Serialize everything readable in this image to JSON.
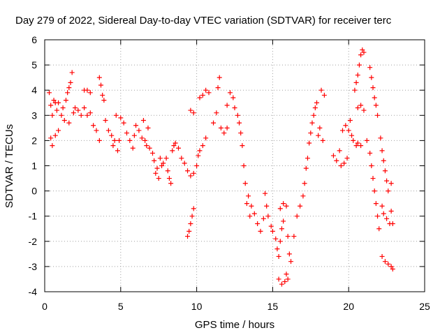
{
  "chart_data": {
    "type": "scatter",
    "title": "Day 279 of 2022, Sidereal Day-to-day VTEC variation (SDTVAR) for receiver terc",
    "xlabel": "GPS time / hours",
    "ylabel": "SDTVAR / TECUs",
    "xlim": [
      0,
      25
    ],
    "ylim": [
      -4,
      6
    ],
    "xticks": [
      0,
      5,
      10,
      15,
      20,
      25
    ],
    "yticks": [
      -4,
      -3,
      -2,
      -1,
      0,
      1,
      2,
      3,
      4,
      5,
      6
    ],
    "grid": true,
    "marker": "+",
    "marker_color": "#ff0000",
    "series": [
      {
        "name": "",
        "points": [
          [
            0.3,
            3.9
          ],
          [
            0.4,
            3.4
          ],
          [
            0.5,
            3.0
          ],
          [
            0.6,
            3.6
          ],
          [
            0.7,
            3.5
          ],
          [
            0.8,
            3.2
          ],
          [
            0.9,
            3.5
          ],
          [
            0.4,
            2.1
          ],
          [
            0.5,
            1.8
          ],
          [
            0.7,
            2.2
          ],
          [
            0.9,
            2.4
          ],
          [
            1.1,
            3.0
          ],
          [
            1.2,
            3.3
          ],
          [
            1.3,
            2.8
          ],
          [
            1.4,
            3.6
          ],
          [
            1.5,
            3.9
          ],
          [
            1.6,
            4.1
          ],
          [
            1.7,
            4.3
          ],
          [
            1.8,
            4.7
          ],
          [
            1.6,
            2.7
          ],
          [
            1.9,
            3.1
          ],
          [
            2.0,
            3.3
          ],
          [
            2.2,
            3.2
          ],
          [
            2.4,
            3.0
          ],
          [
            2.6,
            3.3
          ],
          [
            2.8,
            3.0
          ],
          [
            3.0,
            3.1
          ],
          [
            2.6,
            4.0
          ],
          [
            2.8,
            4.0
          ],
          [
            3.0,
            3.9
          ],
          [
            3.2,
            2.6
          ],
          [
            3.4,
            2.4
          ],
          [
            3.6,
            2.0
          ],
          [
            3.6,
            4.5
          ],
          [
            3.7,
            4.2
          ],
          [
            3.8,
            3.8
          ],
          [
            3.9,
            3.6
          ],
          [
            4.0,
            2.8
          ],
          [
            4.2,
            2.4
          ],
          [
            4.4,
            2.2
          ],
          [
            4.5,
            1.8
          ],
          [
            4.6,
            2.0
          ],
          [
            4.8,
            1.6
          ],
          [
            4.9,
            2.0
          ],
          [
            4.7,
            3.0
          ],
          [
            5.0,
            2.9
          ],
          [
            5.2,
            2.7
          ],
          [
            5.4,
            2.3
          ],
          [
            5.6,
            2.0
          ],
          [
            5.8,
            1.7
          ],
          [
            5.9,
            2.2
          ],
          [
            6.0,
            2.6
          ],
          [
            6.2,
            2.4
          ],
          [
            6.4,
            2.1
          ],
          [
            6.5,
            2.8
          ],
          [
            6.6,
            2.0
          ],
          [
            6.7,
            1.8
          ],
          [
            6.8,
            2.5
          ],
          [
            6.9,
            1.7
          ],
          [
            7.1,
            1.5
          ],
          [
            7.2,
            1.2
          ],
          [
            7.3,
            0.7
          ],
          [
            7.4,
            0.9
          ],
          [
            7.5,
            0.5
          ],
          [
            7.6,
            1.3
          ],
          [
            7.7,
            1.0
          ],
          [
            7.8,
            1.1
          ],
          [
            8.0,
            1.3
          ],
          [
            8.1,
            0.8
          ],
          [
            8.2,
            0.5
          ],
          [
            8.3,
            0.3
          ],
          [
            8.4,
            1.6
          ],
          [
            8.5,
            1.8
          ],
          [
            8.6,
            1.9
          ],
          [
            8.8,
            1.7
          ],
          [
            9.0,
            1.3
          ],
          [
            9.2,
            1.1
          ],
          [
            9.4,
            0.8
          ],
          [
            9.6,
            0.6
          ],
          [
            9.8,
            0.7
          ],
          [
            9.4,
            -1.8
          ],
          [
            9.5,
            -1.6
          ],
          [
            9.6,
            -1.3
          ],
          [
            9.7,
            -1.0
          ],
          [
            9.8,
            -0.7
          ],
          [
            9.6,
            3.2
          ],
          [
            9.8,
            3.1
          ],
          [
            10.0,
            1.0
          ],
          [
            10.1,
            1.4
          ],
          [
            10.2,
            1.6
          ],
          [
            10.4,
            1.8
          ],
          [
            10.6,
            2.1
          ],
          [
            10.2,
            3.7
          ],
          [
            10.4,
            3.8
          ],
          [
            10.6,
            4.0
          ],
          [
            10.8,
            3.9
          ],
          [
            11.1,
            2.7
          ],
          [
            11.3,
            3.1
          ],
          [
            11.4,
            4.1
          ],
          [
            11.5,
            4.5
          ],
          [
            11.6,
            2.5
          ],
          [
            11.8,
            2.3
          ],
          [
            12.0,
            2.5
          ],
          [
            12.0,
            3.4
          ],
          [
            12.2,
            3.9
          ],
          [
            12.4,
            3.7
          ],
          [
            12.5,
            3.3
          ],
          [
            12.7,
            3.0
          ],
          [
            12.8,
            2.7
          ],
          [
            12.9,
            2.3
          ],
          [
            13.0,
            1.8
          ],
          [
            13.1,
            1.0
          ],
          [
            13.2,
            0.3
          ],
          [
            13.3,
            -0.5
          ],
          [
            13.5,
            -1.0
          ],
          [
            13.4,
            -0.2
          ],
          [
            13.6,
            -0.6
          ],
          [
            13.8,
            -0.9
          ],
          [
            14.0,
            -1.3
          ],
          [
            14.2,
            -1.6
          ],
          [
            14.4,
            -1.1
          ],
          [
            14.6,
            -0.6
          ],
          [
            14.5,
            -0.1
          ],
          [
            14.7,
            -1.0
          ],
          [
            14.9,
            -1.4
          ],
          [
            15.0,
            -1.6
          ],
          [
            15.2,
            -1.9
          ],
          [
            15.3,
            -2.3
          ],
          [
            15.4,
            -2.6
          ],
          [
            15.5,
            -2.0
          ],
          [
            15.6,
            -1.5
          ],
          [
            15.7,
            -1.2
          ],
          [
            15.4,
            -3.5
          ],
          [
            15.6,
            -3.7
          ],
          [
            15.8,
            -3.6
          ],
          [
            15.9,
            -3.3
          ],
          [
            16.0,
            -3.5
          ],
          [
            15.5,
            -0.7
          ],
          [
            15.7,
            -0.5
          ],
          [
            15.9,
            -0.6
          ],
          [
            16.0,
            -1.8
          ],
          [
            16.1,
            -2.5
          ],
          [
            16.2,
            -2.8
          ],
          [
            16.4,
            -1.8
          ],
          [
            16.6,
            -1.0
          ],
          [
            16.8,
            -0.6
          ],
          [
            17.0,
            -0.2
          ],
          [
            17.1,
            0.3
          ],
          [
            17.2,
            0.9
          ],
          [
            17.3,
            1.3
          ],
          [
            17.4,
            1.9
          ],
          [
            17.5,
            2.3
          ],
          [
            17.6,
            2.7
          ],
          [
            17.7,
            3.0
          ],
          [
            17.8,
            3.3
          ],
          [
            17.9,
            3.5
          ],
          [
            18.0,
            2.2
          ],
          [
            18.1,
            2.5
          ],
          [
            18.3,
            2.0
          ],
          [
            18.2,
            4.0
          ],
          [
            18.4,
            3.8
          ],
          [
            19.0,
            1.4
          ],
          [
            19.2,
            1.2
          ],
          [
            19.4,
            1.6
          ],
          [
            19.6,
            2.4
          ],
          [
            19.8,
            2.6
          ],
          [
            19.5,
            1.0
          ],
          [
            19.7,
            1.1
          ],
          [
            19.9,
            1.3
          ],
          [
            20.0,
            2.4
          ],
          [
            20.1,
            2.8
          ],
          [
            20.2,
            2.2
          ],
          [
            20.3,
            2.0
          ],
          [
            20.5,
            1.8
          ],
          [
            20.6,
            1.9
          ],
          [
            20.8,
            1.8
          ],
          [
            20.4,
            4.0
          ],
          [
            20.5,
            4.3
          ],
          [
            20.6,
            4.6
          ],
          [
            20.7,
            5.0
          ],
          [
            20.8,
            5.4
          ],
          [
            20.9,
            5.6
          ],
          [
            21.0,
            5.5
          ],
          [
            20.6,
            3.3
          ],
          [
            20.8,
            3.4
          ],
          [
            21.0,
            3.2
          ],
          [
            21.2,
            2.0
          ],
          [
            21.4,
            1.5
          ],
          [
            21.5,
            1.0
          ],
          [
            21.6,
            0.5
          ],
          [
            21.7,
            0.0
          ],
          [
            21.8,
            -0.5
          ],
          [
            21.9,
            -1.0
          ],
          [
            22.0,
            -1.5
          ],
          [
            21.4,
            4.9
          ],
          [
            21.5,
            4.5
          ],
          [
            21.6,
            4.1
          ],
          [
            21.7,
            3.7
          ],
          [
            21.8,
            3.4
          ],
          [
            21.9,
            3.0
          ],
          [
            22.1,
            2.1
          ],
          [
            22.2,
            1.6
          ],
          [
            22.3,
            1.2
          ],
          [
            22.4,
            0.8
          ],
          [
            22.5,
            0.4
          ],
          [
            22.6,
            0.0
          ],
          [
            22.8,
            0.3
          ],
          [
            22.2,
            -0.6
          ],
          [
            22.3,
            -0.9
          ],
          [
            22.5,
            -1.1
          ],
          [
            22.7,
            -1.3
          ],
          [
            22.8,
            -0.8
          ],
          [
            22.9,
            -1.3
          ],
          [
            22.2,
            -2.6
          ],
          [
            22.4,
            -2.8
          ],
          [
            22.6,
            -2.9
          ],
          [
            22.8,
            -3.0
          ],
          [
            22.9,
            -3.1
          ]
        ]
      }
    ]
  }
}
